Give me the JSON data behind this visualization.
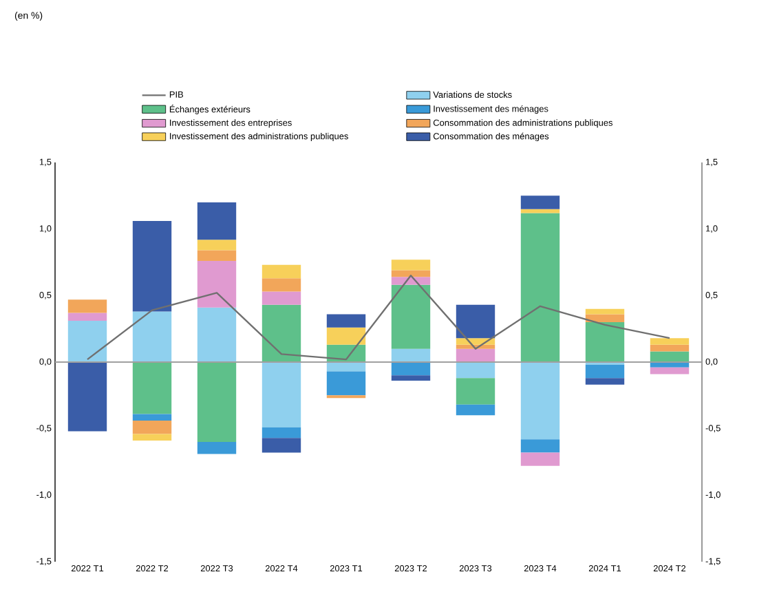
{
  "chart_data": {
    "type": "bar",
    "stacked": true,
    "title": "(en %)",
    "categories": [
      "2022 T1",
      "2022 T2",
      "2022 T3",
      "2022 T4",
      "2023 T1",
      "2023 T2",
      "2023 T3",
      "2023 T4",
      "2024 T1",
      "2024 T2"
    ],
    "series": [
      {
        "name": "PIB",
        "type": "line",
        "color": "#707070",
        "values": [
          0.02,
          0.39,
          0.52,
          0.06,
          0.02,
          0.65,
          0.1,
          0.42,
          0.28,
          0.18
        ]
      },
      {
        "name": "Variations de stocks",
        "color": "#8fd0ee",
        "values": [
          0.31,
          0.38,
          0.41,
          -0.49,
          -0.07,
          0.1,
          -0.12,
          -0.58,
          -0.02,
          null
        ]
      },
      {
        "name": "Échanges extérieurs",
        "color": "#5ec08a",
        "values": [
          null,
          -0.39,
          -0.6,
          0.43,
          0.13,
          0.48,
          -0.2,
          1.12,
          0.3,
          0.08
        ]
      },
      {
        "name": "Investissement des ménages",
        "color": "#3a9ad8",
        "values": [
          null,
          -0.05,
          -0.09,
          -0.08,
          -0.18,
          -0.1,
          -0.08,
          -0.1,
          -0.1,
          -0.04
        ]
      },
      {
        "name": "Investissement des entreprises",
        "color": "#e09ad0",
        "values": [
          0.06,
          null,
          0.35,
          0.1,
          null,
          0.06,
          0.1,
          -0.1,
          null,
          -0.05
        ]
      },
      {
        "name": "Consommation des administrations publiques",
        "color": "#f2a65a",
        "values": [
          0.1,
          -0.1,
          0.08,
          0.1,
          -0.02,
          0.05,
          0.03,
          null,
          0.06,
          0.05
        ]
      },
      {
        "name": "Investissement des administrations publiques",
        "color": "#f7d05a",
        "values": [
          null,
          -0.05,
          0.08,
          0.1,
          0.13,
          0.08,
          0.05,
          0.03,
          0.04,
          0.05
        ]
      },
      {
        "name": "Consommation des ménages",
        "color": "#3a5da8",
        "values": [
          -0.52,
          0.68,
          0.28,
          -0.11,
          0.1,
          -0.04,
          0.25,
          0.1,
          -0.05,
          null
        ]
      }
    ],
    "ylim": [
      -1.5,
      1.5
    ],
    "yticks": [
      {
        "value": -1.5,
        "label": "-1,5"
      },
      {
        "value": -1.0,
        "label": "-1,0"
      },
      {
        "value": -0.5,
        "label": "-0,5"
      },
      {
        "value": 0,
        "label": "0,0"
      },
      {
        "value": 0.5,
        "label": "0,5"
      },
      {
        "value": 1.0,
        "label": "1,0"
      },
      {
        "value": 1.5,
        "label": "1,5"
      }
    ],
    "y2lim": [
      -1.5,
      1.5
    ],
    "y2ticks": [
      {
        "value": -1.5,
        "label": "-1,5"
      },
      {
        "value": -1.0,
        "label": "-1,0"
      },
      {
        "value": -0.5,
        "label": "-0,5"
      },
      {
        "value": 0,
        "label": "0,0"
      },
      {
        "value": 0.5,
        "label": "0,5"
      },
      {
        "value": 1.0,
        "label": "1,0"
      },
      {
        "value": 1.5,
        "label": "1,5"
      }
    ],
    "ref_lines": [
      {
        "axis": "y",
        "value": 0,
        "color": "#a0a0a0"
      }
    ],
    "legend": "top",
    "grid": false,
    "marker": "none",
    "line_style": "solid"
  }
}
